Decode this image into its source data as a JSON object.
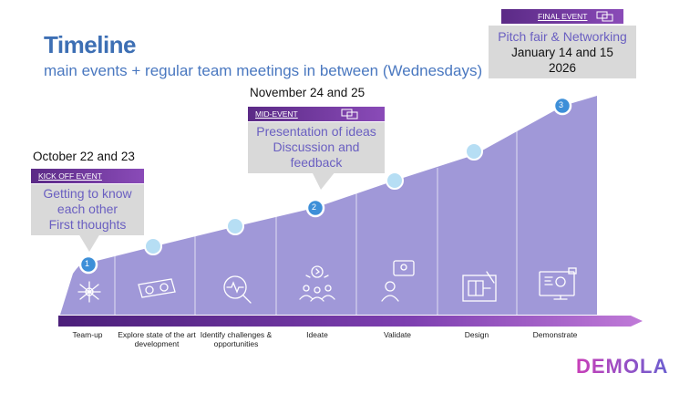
{
  "header": {
    "title": "Timeline",
    "subtitle": "main events + regular team meetings in between (Wednesdays)"
  },
  "events": [
    {
      "tag": "KICK OFF EVENT",
      "date": "October 22 and 23",
      "lines": [
        "Getting to know",
        "each other",
        "First thoughts"
      ],
      "number": "1"
    },
    {
      "tag": "MID-EVENT",
      "date": "November 24 and 25",
      "lines": [
        "Presentation of ideas",
        "Discussion and",
        "feedback"
      ],
      "number": "2"
    },
    {
      "tag": "FINAL EVENT",
      "date_lines": [
        "January 14 and 15",
        "2026"
      ],
      "lines": [
        "Pitch fair & Networking"
      ],
      "number": "3"
    }
  ],
  "stages": [
    {
      "label": "Team-up",
      "icon": "team-up-icon"
    },
    {
      "label": "Explore state of the art development",
      "icon": "vr-glasses-icon"
    },
    {
      "label": "Identify challenges & opportunities",
      "icon": "magnifier-pulse-icon"
    },
    {
      "label": "Ideate",
      "icon": "idea-group-icon"
    },
    {
      "label": "Validate",
      "icon": "person-idea-bubble-icon"
    },
    {
      "label": "Design",
      "icon": "blueprint-icon"
    },
    {
      "label": "Demonstrate",
      "icon": "presentation-screen-icon"
    }
  ],
  "logo": {
    "text": "DEMOLA",
    "colors": [
      "#c83fb8",
      "#6b5fd0"
    ]
  },
  "colors": {
    "area": "#9b92d6",
    "accent": "#6a3aa0",
    "dot": "#a8d8f0",
    "title": "#3d6fb4"
  }
}
